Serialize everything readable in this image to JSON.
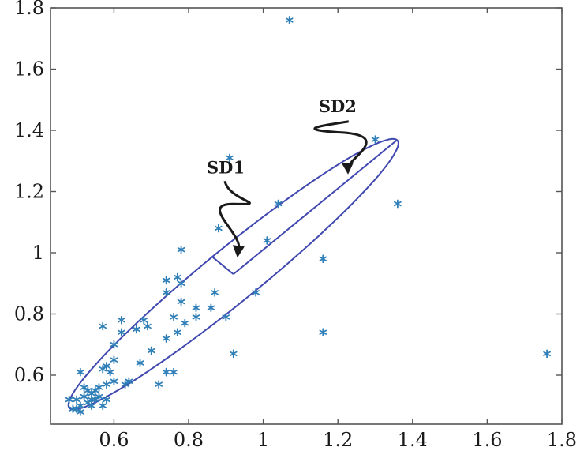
{
  "chart_data": {
    "type": "scatter",
    "title": "",
    "xlabel": "",
    "ylabel": "",
    "xlim": [
      0.43,
      1.8
    ],
    "ylim": [
      0.44,
      1.8
    ],
    "xticks": [
      0.6,
      0.8,
      1,
      1.2,
      1.4,
      1.6,
      1.8
    ],
    "xtick_labels": [
      "0.6",
      "0.8",
      "1",
      "1.2",
      "1.4",
      "1.6",
      "1.8"
    ],
    "yticks": [
      0.6,
      0.8,
      1,
      1.2,
      1.4,
      1.6,
      1.8
    ],
    "ytick_labels": [
      "0.6",
      "0.8",
      "1",
      "1.2",
      "1.4",
      "1.6",
      "1.8"
    ],
    "grid": false,
    "marker_color": "#2f7fb8",
    "ellipse_color": "#4048b0",
    "points": [
      [
        1.07,
        1.76
      ],
      [
        1.76,
        0.67
      ],
      [
        1.36,
        1.16
      ],
      [
        1.3,
        1.37
      ],
      [
        0.91,
        1.31
      ],
      [
        1.04,
        1.16
      ],
      [
        1.16,
        0.98
      ],
      [
        1.16,
        0.74
      ],
      [
        1.01,
        1.04
      ],
      [
        0.88,
        1.08
      ],
      [
        0.92,
        0.67
      ],
      [
        0.98,
        0.87
      ],
      [
        0.9,
        0.79
      ],
      [
        0.87,
        0.87
      ],
      [
        0.86,
        0.82
      ],
      [
        0.82,
        0.82
      ],
      [
        0.82,
        0.79
      ],
      [
        0.78,
        1.01
      ],
      [
        0.77,
        0.92
      ],
      [
        0.78,
        0.9
      ],
      [
        0.78,
        0.84
      ],
      [
        0.76,
        0.79
      ],
      [
        0.74,
        0.87
      ],
      [
        0.74,
        0.91
      ],
      [
        0.79,
        0.77
      ],
      [
        0.77,
        0.74
      ],
      [
        0.74,
        0.72
      ],
      [
        0.76,
        0.61
      ],
      [
        0.74,
        0.61
      ],
      [
        0.72,
        0.57
      ],
      [
        0.7,
        0.68
      ],
      [
        0.69,
        0.76
      ],
      [
        0.68,
        0.78
      ],
      [
        0.66,
        0.75
      ],
      [
        0.67,
        0.64
      ],
      [
        0.64,
        0.58
      ],
      [
        0.63,
        0.57
      ],
      [
        0.62,
        0.78
      ],
      [
        0.62,
        0.74
      ],
      [
        0.6,
        0.7
      ],
      [
        0.57,
        0.76
      ],
      [
        0.6,
        0.65
      ],
      [
        0.58,
        0.63
      ],
      [
        0.57,
        0.62
      ],
      [
        0.59,
        0.61
      ],
      [
        0.6,
        0.58
      ],
      [
        0.58,
        0.57
      ],
      [
        0.56,
        0.56
      ],
      [
        0.56,
        0.53
      ],
      [
        0.55,
        0.55
      ],
      [
        0.54,
        0.52
      ],
      [
        0.53,
        0.55
      ],
      [
        0.53,
        0.51
      ],
      [
        0.52,
        0.53
      ],
      [
        0.51,
        0.5
      ],
      [
        0.51,
        0.48
      ],
      [
        0.5,
        0.52
      ],
      [
        0.5,
        0.49
      ],
      [
        0.49,
        0.49
      ],
      [
        0.48,
        0.52
      ],
      [
        0.51,
        0.61
      ],
      [
        0.54,
        0.54
      ],
      [
        0.55,
        0.52
      ],
      [
        0.57,
        0.5
      ],
      [
        0.58,
        0.52
      ],
      [
        0.52,
        0.56
      ],
      [
        0.54,
        0.5
      ]
    ],
    "ellipse": {
      "center": [
        0.92,
        0.93
      ],
      "rotation_deg": 45,
      "sd1": 0.08,
      "sd2": 0.62
    },
    "annotations": [
      {
        "text": "SD1",
        "x": 0.95,
        "y": 1.26
      },
      {
        "text": "SD2",
        "x": 1.25,
        "y": 1.46
      }
    ]
  }
}
